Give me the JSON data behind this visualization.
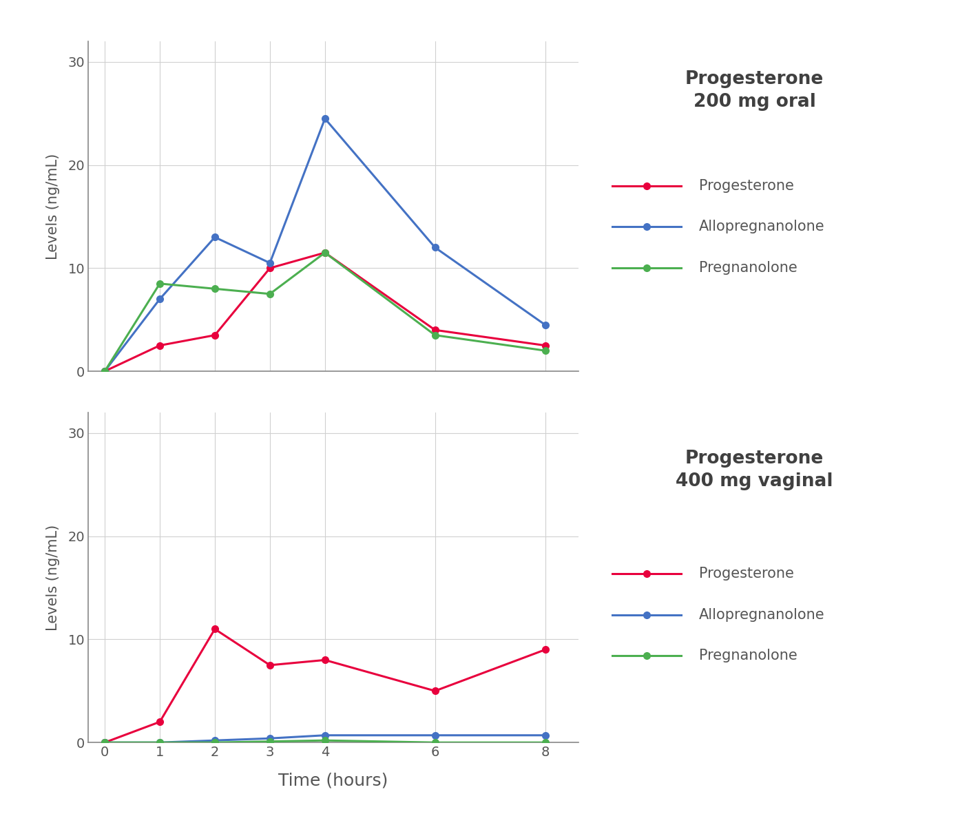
{
  "time": [
    0,
    1,
    2,
    3,
    4,
    6,
    8
  ],
  "oral_progesterone": [
    0,
    2.5,
    3.5,
    10,
    11.5,
    4,
    2.5
  ],
  "oral_allopregnanolone": [
    0,
    7,
    13,
    10.5,
    24.5,
    12,
    4.5
  ],
  "oral_pregnanolone": [
    0,
    8.5,
    8,
    7.5,
    11.5,
    3.5,
    2
  ],
  "vaginal_progesterone": [
    0,
    2,
    11,
    7.5,
    8,
    5,
    9
  ],
  "vaginal_allopregnanolone": [
    0,
    0,
    0.2,
    0.4,
    0.7,
    0.7,
    0.7
  ],
  "vaginal_pregnanolone": [
    0,
    0,
    0.0,
    0.1,
    0.2,
    0.0,
    0.0
  ],
  "color_progesterone": "#e8003d",
  "color_allopregnanolone": "#4472c4",
  "color_pregnanolone": "#4caf50",
  "title_oral": "Progesterone\n200 mg oral",
  "title_vaginal": "Progesterone\n400 mg vaginal",
  "ylabel": "Levels (ng/mL)",
  "xlabel": "Time (hours)",
  "legend_labels": [
    "Progesterone",
    "Allopregnanolone",
    "Pregnanolone"
  ],
  "ylim": [
    0,
    32
  ],
  "yticks": [
    0,
    10,
    20,
    30
  ],
  "xticks": [
    0,
    1,
    2,
    3,
    4,
    6,
    8
  ],
  "background_color": "#ffffff",
  "grid_color": "#d0d0d0",
  "tick_label_color": "#555555",
  "axis_label_color": "#555555",
  "title_color": "#404040",
  "legend_label_color": "#555555",
  "line_width": 2.2,
  "marker_size": 7
}
